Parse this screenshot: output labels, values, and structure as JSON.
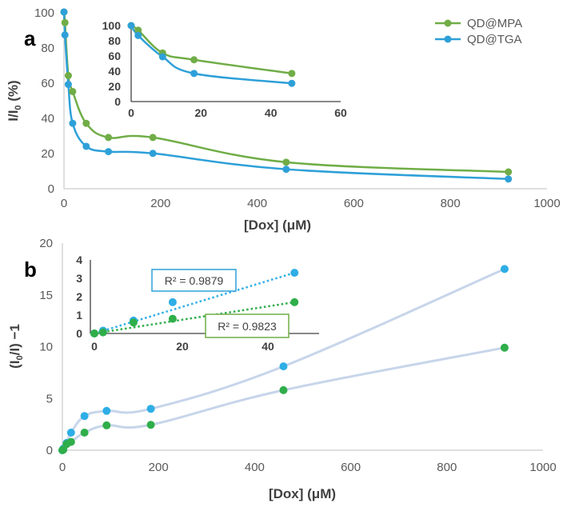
{
  "colors": {
    "mpa": "#70ad47",
    "tga": "#2ea0d8",
    "mpa_dot": "#2fae4a",
    "tga_dot": "#2eaee6",
    "axis": "#404040",
    "fade": "#c7d5ea"
  },
  "legend": {
    "mpa": "QD@MPA",
    "tga": "QD@TGA"
  },
  "chart_data": [
    {
      "id": "a-main",
      "type": "line",
      "panel_label": "a",
      "title": "",
      "xlabel": "[Dox] (μM)",
      "ylabel_main": "I/I",
      "ylabel_sub": "0",
      "ylabel_tail": " (%)",
      "xlim": [
        0,
        1000
      ],
      "ylim": [
        0,
        100
      ],
      "xticks": [
        "0",
        "200",
        "400",
        "600",
        "800",
        "1000"
      ],
      "yticks": [
        "0",
        "20",
        "40",
        "60",
        "80",
        "100"
      ],
      "series": [
        {
          "name": "QD@MPA",
          "x": [
            0,
            2,
            9,
            18,
            46,
            92,
            184,
            460,
            920
          ],
          "y": [
            100,
            94,
            64,
            55,
            37,
            29,
            29,
            15,
            9.5
          ]
        },
        {
          "name": "QD@TGA",
          "x": [
            0,
            2,
            9,
            18,
            46,
            92,
            184,
            460,
            920
          ],
          "y": [
            100,
            87,
            59,
            37,
            24,
            21,
            20,
            11,
            5.5
          ]
        }
      ]
    },
    {
      "id": "a-inset",
      "type": "line",
      "xlim": [
        0,
        60
      ],
      "ylim": [
        0,
        100
      ],
      "xticks": [
        "0",
        "20",
        "40",
        "60"
      ],
      "yticks": [
        "0",
        "20",
        "40",
        "60",
        "80",
        "100"
      ],
      "series": [
        {
          "name": "QD@MPA",
          "x": [
            0,
            2,
            9,
            18,
            46
          ],
          "y": [
            100,
            94,
            64,
            55,
            37
          ]
        },
        {
          "name": "QD@TGA",
          "x": [
            0,
            2,
            9,
            18,
            46
          ],
          "y": [
            100,
            87,
            59,
            37,
            24
          ]
        }
      ]
    },
    {
      "id": "b-main",
      "type": "scatter",
      "panel_label": "b",
      "xlabel": "[Dox] (μM)",
      "ylabel_main": "(I",
      "ylabel_sub": "0",
      "ylabel_tail": "/I) −1",
      "xlim": [
        0,
        1000
      ],
      "ylim": [
        0,
        20
      ],
      "xticks": [
        "0",
        "200",
        "400",
        "600",
        "800",
        "1000"
      ],
      "yticks": [
        "0",
        "5",
        "10",
        "15",
        "20"
      ],
      "series": [
        {
          "name": "QD@TGA",
          "x": [
            0,
            2,
            9,
            18,
            46,
            92,
            184,
            460,
            920
          ],
          "y": [
            0,
            0.15,
            0.7,
            1.7,
            3.3,
            3.8,
            4.0,
            8.1,
            17.5
          ]
        },
        {
          "name": "QD@MPA",
          "x": [
            0,
            2,
            9,
            18,
            46,
            92,
            184,
            460,
            920
          ],
          "y": [
            0,
            0.06,
            0.6,
            0.8,
            1.7,
            2.4,
            2.45,
            5.8,
            9.9
          ]
        }
      ]
    },
    {
      "id": "b-inset",
      "type": "scatter",
      "xlim": [
        0,
        50
      ],
      "ylim": [
        0,
        4
      ],
      "xticks": [
        "0",
        "20",
        "40"
      ],
      "yticks": [
        "0",
        "1",
        "2",
        "3",
        "4"
      ],
      "series": [
        {
          "name": "QD@TGA",
          "x": [
            0,
            2,
            9,
            18,
            46
          ],
          "y": [
            0,
            0.15,
            0.7,
            1.7,
            3.3
          ],
          "trend": [
            [
              0,
              0
            ],
            [
              46,
              3.3
            ]
          ],
          "r2": "R² = 0.9879"
        },
        {
          "name": "QD@MPA",
          "x": [
            0,
            2,
            9,
            18,
            46
          ],
          "y": [
            0,
            0.06,
            0.6,
            0.8,
            1.7
          ],
          "trend": [
            [
              0,
              0
            ],
            [
              46,
              1.7
            ]
          ],
          "r2": "R² = 0.9823"
        }
      ]
    }
  ]
}
